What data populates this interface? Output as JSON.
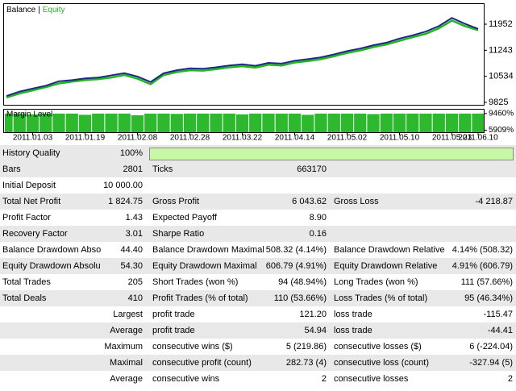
{
  "chart_data": [
    {
      "type": "line",
      "legend_separator": "|",
      "categories": [
        null,
        null,
        "2011.01.03",
        null,
        null,
        null,
        "2011.01.19",
        null,
        null,
        null,
        "2011.02.08",
        null,
        null,
        null,
        "2011.02.28",
        null,
        null,
        null,
        "2011.03.22",
        null,
        null,
        null,
        "2011.04.14",
        null,
        null,
        null,
        "2011.05.02",
        null,
        null,
        null,
        "2011.05.10",
        null,
        null,
        null,
        "2011.05.23",
        null,
        "2011.06.10"
      ],
      "series": [
        {
          "name": "Balance",
          "color": "#1a2a80",
          "values": [
            10000,
            10120,
            10200,
            10280,
            10400,
            10430,
            10480,
            10500,
            10560,
            10620,
            10530,
            10380,
            10620,
            10700,
            10750,
            10740,
            10780,
            10830,
            10860,
            10820,
            10900,
            10880,
            10960,
            11000,
            11050,
            11130,
            11220,
            11290,
            11380,
            11450,
            11560,
            11650,
            11750,
            11900,
            12120,
            11960,
            11825
          ]
        },
        {
          "name": "Equity",
          "color": "#22b422",
          "values": [
            9960,
            10070,
            10150,
            10240,
            10340,
            10390,
            10430,
            10460,
            10500,
            10570,
            10470,
            10320,
            10570,
            10650,
            10700,
            10690,
            10730,
            10780,
            10810,
            10770,
            10850,
            10830,
            10910,
            10950,
            11000,
            11080,
            11170,
            11240,
            11330,
            11400,
            11500,
            11600,
            11690,
            11840,
            12050,
            11900,
            11790
          ]
        }
      ],
      "ylim": [
        9760,
        12500
      ],
      "yticks": [
        9825,
        10534,
        11243,
        11952
      ]
    },
    {
      "type": "bar",
      "title": "Margin Level",
      "color": "#2db82d",
      "values": [
        9460,
        9460,
        9300,
        9460,
        9460,
        9460,
        9200,
        9460,
        9460,
        9460,
        9100,
        9460,
        9460,
        9400,
        9460,
        9460,
        9460,
        9460,
        9300,
        9460,
        9460,
        9460,
        9460,
        9200,
        9460,
        9460,
        9460,
        9460,
        9350,
        9460,
        9460,
        9460,
        9460,
        9460,
        9460,
        9460,
        9460
      ],
      "ylim": [
        5491,
        10296
      ],
      "yticks": [
        {
          "value": 9460,
          "label": "9460%"
        },
        {
          "value": 5909,
          "label": "5909%"
        }
      ]
    }
  ],
  "report": {
    "rows": [
      [
        "History Quality",
        "100%",
        null,
        null,
        null,
        null
      ],
      [
        "Bars",
        "2801",
        "Ticks",
        "663170",
        null,
        null
      ],
      [
        "Initial Deposit",
        "10 000.00",
        null,
        null,
        null,
        null
      ],
      [
        "Total Net Profit",
        "1 824.75",
        "Gross Profit",
        "6 043.62",
        "Gross Loss",
        "-4 218.87"
      ],
      [
        "Profit Factor",
        "1.43",
        "Expected Payoff",
        "8.90",
        null,
        null
      ],
      [
        "Recovery Factor",
        "3.01",
        "Sharpe Ratio",
        "0.16",
        null,
        null
      ],
      [
        "Balance Drawdown Abso",
        "44.40",
        "Balance Drawdown Maximal",
        "508.32 (4.14%)",
        "Balance Drawdown Relative",
        "4.14% (508.32)"
      ],
      [
        "Equity Drawdown Absolu",
        "54.30",
        "Equity Drawdown Maximal",
        "606.79 (4.91%)",
        "Equity Drawdown Relative",
        "4.91% (606.79)"
      ],
      [
        "Total Trades",
        "205",
        "Short Trades (won %)",
        "94 (48.94%)",
        "Long Trades (won %)",
        "111 (57.66%)"
      ],
      [
        "Total Deals",
        "410",
        "Profit Trades (% of total)",
        "110 (53.66%)",
        "Loss Trades (% of total)",
        "95 (46.34%)"
      ],
      [
        null,
        "Largest",
        "profit trade",
        "121.20",
        "loss trade",
        "-115.47"
      ],
      [
        null,
        "Average",
        "profit trade",
        "54.94",
        "loss trade",
        "-44.41"
      ],
      [
        null,
        "Maximum",
        "consecutive wins ($)",
        "5 (219.86)",
        "consecutive losses ($)",
        "6 (-224.04)"
      ],
      [
        null,
        "Maximal",
        "consecutive profit (count)",
        "282.73 (4)",
        "consecutive loss (count)",
        "-327.94 (5)"
      ],
      [
        null,
        "Average",
        "consecutive wins",
        "2",
        "consecutive losses",
        "2"
      ]
    ]
  }
}
